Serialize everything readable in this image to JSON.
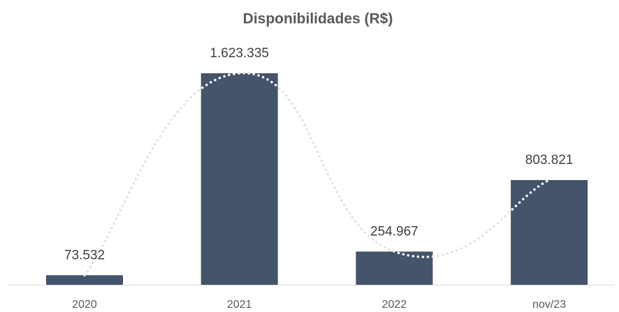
{
  "chart_data": {
    "type": "bar",
    "title": "Disponibilidades (R$)",
    "categories": [
      "2020",
      "2021",
      "2022",
      "nov/23"
    ],
    "values": [
      73532,
      1623335,
      254967,
      803821
    ],
    "value_labels": [
      "73.532",
      "1.623.335",
      "254.967",
      "803.821"
    ],
    "color": "#44546a",
    "ylim": [
      0,
      1800000
    ],
    "trendline": "smooth"
  }
}
